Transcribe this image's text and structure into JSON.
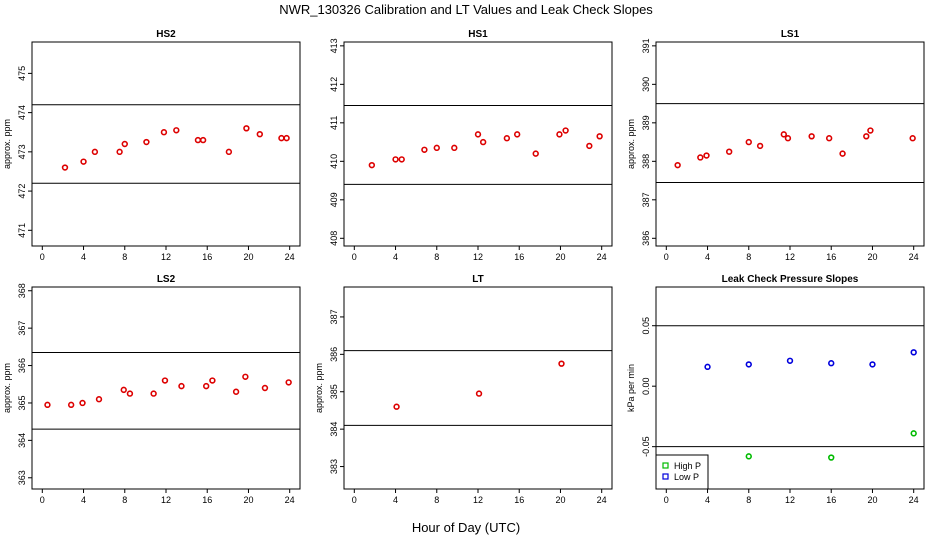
{
  "figure": {
    "title": "NWR_130326  Calibration and LT Values and Leak Check Slopes",
    "xlabel": "Hour of Day (UTC)"
  },
  "chart_data": [
    {
      "type": "scatter",
      "title": "HS2",
      "ylabel": "approx. ppm",
      "xlim": [
        -1,
        25
      ],
      "ylim": [
        470.6,
        475.8
      ],
      "xticks": [
        0,
        4,
        8,
        12,
        16,
        20,
        24
      ],
      "yticks": [
        471,
        472,
        473,
        474,
        475
      ],
      "hlines": [
        474.2,
        472.2
      ],
      "series": [
        {
          "color": "#dd0000",
          "shape": "circle",
          "x": [
            2.2,
            4.0,
            5.1,
            7.5,
            8.0,
            10.1,
            11.8,
            13.0,
            15.1,
            15.6,
            18.1,
            19.8,
            21.1,
            23.2,
            23.7
          ],
          "y": [
            472.6,
            472.75,
            473.0,
            473.0,
            473.2,
            473.25,
            473.5,
            473.55,
            473.3,
            473.3,
            473.0,
            473.6,
            473.45,
            473.35,
            473.35
          ]
        }
      ]
    },
    {
      "type": "scatter",
      "title": "HS1",
      "ylabel": "",
      "xlim": [
        -1,
        25
      ],
      "ylim": [
        407.8,
        413.1
      ],
      "xticks": [
        0,
        4,
        8,
        12,
        16,
        20,
        24
      ],
      "yticks": [
        408,
        409,
        410,
        411,
        412,
        413
      ],
      "hlines": [
        411.45,
        409.4
      ],
      "series": [
        {
          "color": "#dd0000",
          "shape": "circle",
          "x": [
            1.7,
            4.0,
            4.6,
            6.8,
            8.0,
            9.7,
            12.0,
            12.5,
            14.8,
            15.8,
            17.6,
            19.9,
            20.5,
            22.8,
            23.8
          ],
          "y": [
            409.9,
            410.05,
            410.05,
            410.3,
            410.35,
            410.35,
            410.7,
            410.5,
            410.6,
            410.7,
            410.2,
            410.7,
            410.8,
            410.4,
            410.65
          ]
        }
      ]
    },
    {
      "type": "scatter",
      "title": "LS1",
      "ylabel": "approx. ppm",
      "xlim": [
        -1,
        25
      ],
      "ylim": [
        385.8,
        391.1
      ],
      "xticks": [
        0,
        4,
        8,
        12,
        16,
        20,
        24
      ],
      "yticks": [
        386,
        387,
        388,
        389,
        390,
        391
      ],
      "hlines": [
        389.5,
        387.45
      ],
      "series": [
        {
          "color": "#dd0000",
          "shape": "circle",
          "x": [
            1.1,
            3.3,
            3.9,
            6.1,
            8.0,
            9.1,
            11.4,
            11.8,
            14.1,
            15.8,
            17.1,
            19.4,
            19.8,
            23.9
          ],
          "y": [
            387.9,
            388.1,
            388.15,
            388.25,
            388.5,
            388.4,
            388.7,
            388.6,
            388.65,
            388.6,
            388.2,
            388.65,
            388.8,
            388.6
          ]
        }
      ]
    },
    {
      "type": "scatter",
      "title": "LS2",
      "ylabel": "approx. ppm",
      "xlim": [
        -1,
        25
      ],
      "ylim": [
        362.7,
        368.1
      ],
      "xticks": [
        0,
        4,
        8,
        12,
        16,
        20,
        24
      ],
      "yticks": [
        363,
        364,
        365,
        366,
        367,
        368
      ],
      "hlines": [
        366.35,
        364.3
      ],
      "series": [
        {
          "color": "#dd0000",
          "shape": "circle",
          "x": [
            0.5,
            2.8,
            3.9,
            5.5,
            7.9,
            8.5,
            10.8,
            11.9,
            13.5,
            15.9,
            16.5,
            18.8,
            19.7,
            21.6,
            23.9
          ],
          "y": [
            364.95,
            364.95,
            365.0,
            365.1,
            365.35,
            365.25,
            365.25,
            365.6,
            365.45,
            365.45,
            365.6,
            365.3,
            365.7,
            365.4,
            365.55
          ]
        }
      ]
    },
    {
      "type": "scatter",
      "title": "LT",
      "ylabel": "approx. ppm",
      "xlim": [
        -1,
        25
      ],
      "ylim": [
        382.4,
        387.8
      ],
      "xticks": [
        0,
        4,
        8,
        12,
        16,
        20,
        24
      ],
      "yticks": [
        383,
        384,
        385,
        386,
        387
      ],
      "hlines": [
        386.1,
        384.1
      ],
      "series": [
        {
          "color": "#dd0000",
          "shape": "circle",
          "x": [
            4.1,
            12.1,
            20.1
          ],
          "y": [
            384.6,
            384.95,
            385.75
          ]
        }
      ]
    },
    {
      "type": "scatter",
      "title": "Leak Check Pressure Slopes",
      "ylabel": "kPa per min",
      "xlim": [
        -1,
        25
      ],
      "ylim": [
        -0.085,
        0.082
      ],
      "xticks": [
        0,
        4,
        8,
        12,
        16,
        20,
        24
      ],
      "yticks": [
        -0.05,
        0.0,
        0.05
      ],
      "ytick_labels": [
        "-0.05",
        "0.00",
        "0.05"
      ],
      "hlines": [
        0.05,
        -0.05
      ],
      "legend": {
        "position": "bottom-left",
        "entries": [
          "High P",
          "Low P"
        ]
      },
      "series": [
        {
          "name": "High P",
          "color": "#00bb00",
          "shape": "circle",
          "x": [
            8.0,
            16.0,
            24.0
          ],
          "y": [
            -0.058,
            -0.059,
            -0.039
          ]
        },
        {
          "name": "Low P",
          "color": "#0000dd",
          "shape": "circle",
          "x": [
            4.0,
            8.0,
            12.0,
            16.0,
            20.0,
            24.0
          ],
          "y": [
            0.016,
            0.018,
            0.021,
            0.019,
            0.018,
            0.028
          ]
        }
      ]
    }
  ]
}
